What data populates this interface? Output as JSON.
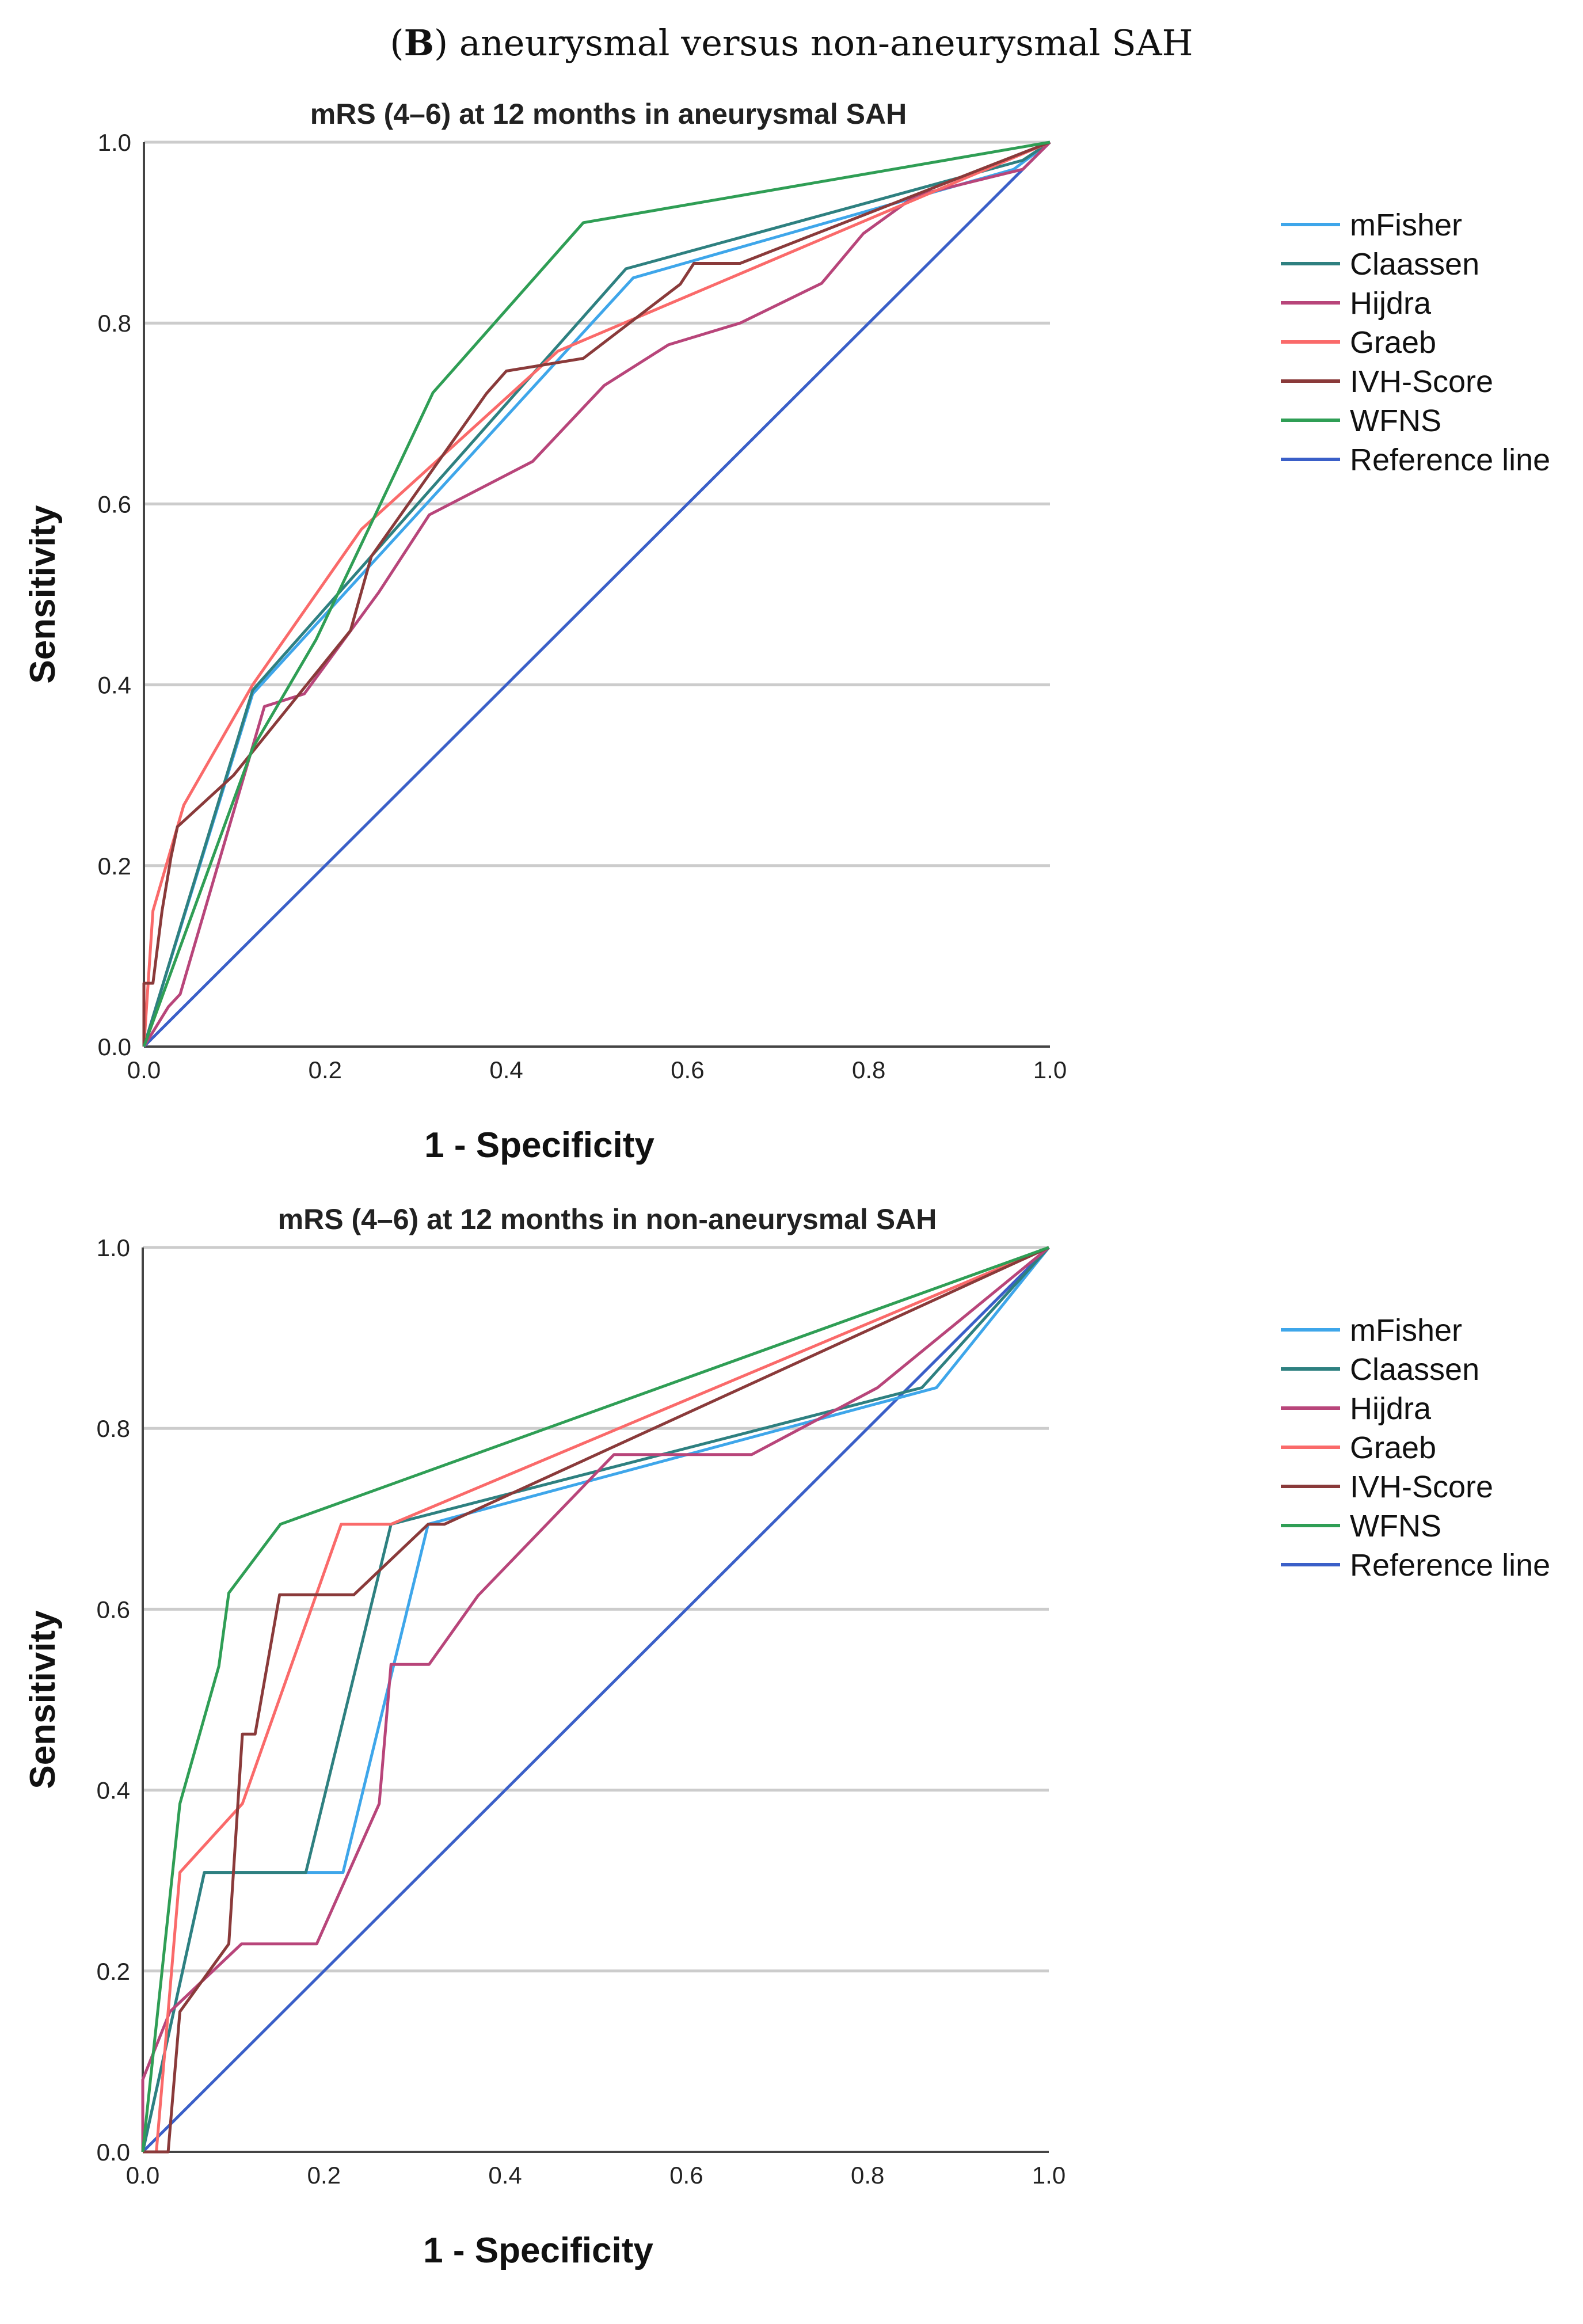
{
  "figure": {
    "panel_letter": "B",
    "title_rest": ") aneurysmal versus non-aneurysmal SAH",
    "title_open": "("
  },
  "colors": {
    "mFisher": "#3ea6ea",
    "Claassen": "#2e8080",
    "Hijdra": "#b8457a",
    "Graeb": "#fa6a6a",
    "IVH-Score": "#8a3a3a",
    "WFNS": "#2f9e55",
    "Reference line": "#3a5fc8",
    "grid": "#cccccc"
  },
  "chart_data": [
    {
      "type": "line",
      "title": "mRS (4–6) at 12 months in aneurysmal SAH",
      "xlabel": "1 - Specificity",
      "ylabel": "Sensitivity",
      "xlim": [
        0,
        1
      ],
      "ylim": [
        0,
        1
      ],
      "xticks": [
        "0.0",
        "0.2",
        "0.4",
        "0.6",
        "0.8",
        "1.0"
      ],
      "yticks": [
        "0.0",
        "0.2",
        "0.4",
        "0.6",
        "0.8",
        "1.0"
      ],
      "grid": "horizontal",
      "legend_position": "right",
      "series": [
        {
          "name": "mFisher",
          "points": [
            [
              0,
              0
            ],
            [
              0.12,
              0.39
            ],
            [
              0.54,
              0.85
            ],
            [
              0.96,
              0.97
            ],
            [
              1,
              1
            ]
          ]
        },
        {
          "name": "Claassen",
          "points": [
            [
              0,
              0
            ],
            [
              0.12,
              0.394
            ],
            [
              0.532,
              0.86
            ],
            [
              0.97,
              0.98
            ],
            [
              1,
              1
            ]
          ]
        },
        {
          "name": "Hijdra",
          "points": [
            [
              0,
              0
            ],
            [
              0.027,
              0.044
            ],
            [
              0.04,
              0.058
            ],
            [
              0.133,
              0.376
            ],
            [
              0.177,
              0.39
            ],
            [
              0.259,
              0.502
            ],
            [
              0.315,
              0.588
            ],
            [
              0.429,
              0.647
            ],
            [
              0.508,
              0.731
            ],
            [
              0.579,
              0.776
            ],
            [
              0.658,
              0.8
            ],
            [
              0.748,
              0.844
            ],
            [
              0.794,
              0.899
            ],
            [
              0.852,
              0.941
            ],
            [
              0.97,
              0.97
            ],
            [
              1,
              1
            ]
          ]
        },
        {
          "name": "Graeb",
          "points": [
            [
              0,
              0
            ],
            [
              0.01,
              0.15
            ],
            [
              0.044,
              0.267
            ],
            [
              0.12,
              0.4
            ],
            [
              0.24,
              0.572
            ],
            [
              0.457,
              0.769
            ],
            [
              1,
              1
            ]
          ]
        },
        {
          "name": "IVH-Score",
          "points": [
            [
              0,
              0
            ],
            [
              0,
              0.07
            ],
            [
              0.01,
              0.07
            ],
            [
              0.02,
              0.15
            ],
            [
              0.03,
              0.21
            ],
            [
              0.037,
              0.243
            ],
            [
              0.099,
              0.3
            ],
            [
              0.228,
              0.46
            ],
            [
              0.251,
              0.542
            ],
            [
              0.378,
              0.722
            ],
            [
              0.4,
              0.747
            ],
            [
              0.485,
              0.761
            ],
            [
              0.592,
              0.843
            ],
            [
              0.607,
              0.866
            ],
            [
              0.658,
              0.866
            ],
            [
              1,
              1
            ]
          ]
        },
        {
          "name": "WFNS",
          "points": [
            [
              0,
              0
            ],
            [
              0.12,
              0.33
            ],
            [
              0.19,
              0.45
            ],
            [
              0.28,
              0.64
            ],
            [
              0.319,
              0.723
            ],
            [
              0.485,
              0.911
            ],
            [
              1,
              1
            ]
          ]
        },
        {
          "name": "Reference line",
          "points": [
            [
              0,
              0
            ],
            [
              1,
              1
            ]
          ]
        }
      ]
    },
    {
      "type": "line",
      "title": "mRS (4–6) at 12 months in non-aneurysmal SAH",
      "xlabel": "1 - Specificity",
      "ylabel": "Sensitivity",
      "xlim": [
        0,
        1
      ],
      "ylim": [
        0,
        1
      ],
      "xticks": [
        "0.0",
        "0.2",
        "0.4",
        "0.6",
        "0.8",
        "1.0"
      ],
      "yticks": [
        "0.0",
        "0.2",
        "0.4",
        "0.6",
        "0.8",
        "1.0"
      ],
      "grid": "horizontal",
      "legend_position": "right",
      "series": [
        {
          "name": "mFisher",
          "points": [
            [
              0,
              0
            ],
            [
              0.068,
              0.309
            ],
            [
              0.221,
              0.309
            ],
            [
              0.315,
              0.694
            ],
            [
              0.876,
              0.845
            ],
            [
              1,
              1
            ]
          ]
        },
        {
          "name": "Claassen",
          "points": [
            [
              0,
              0
            ],
            [
              0.068,
              0.309
            ],
            [
              0.18,
              0.309
            ],
            [
              0.274,
              0.694
            ],
            [
              0.86,
              0.845
            ],
            [
              1,
              1
            ]
          ]
        },
        {
          "name": "Hijdra",
          "points": [
            [
              0,
              0
            ],
            [
              0,
              0.08
            ],
            [
              0.03,
              0.155
            ],
            [
              0.109,
              0.23
            ],
            [
              0.192,
              0.23
            ],
            [
              0.261,
              0.385
            ],
            [
              0.274,
              0.539
            ],
            [
              0.316,
              0.539
            ],
            [
              0.37,
              0.615
            ],
            [
              0.52,
              0.771
            ],
            [
              0.672,
              0.771
            ],
            [
              0.811,
              0.845
            ],
            [
              1,
              1
            ]
          ]
        },
        {
          "name": "Graeb",
          "points": [
            [
              0,
              0
            ],
            [
              0.015,
              0
            ],
            [
              0.041,
              0.309
            ],
            [
              0.11,
              0.385
            ],
            [
              0.219,
              0.694
            ],
            [
              0.274,
              0.694
            ],
            [
              1,
              1
            ]
          ]
        },
        {
          "name": "IVH-Score",
          "points": [
            [
              0,
              0
            ],
            [
              0.028,
              0
            ],
            [
              0.041,
              0.155
            ],
            [
              0.095,
              0.23
            ],
            [
              0.11,
              0.462
            ],
            [
              0.124,
              0.462
            ],
            [
              0.151,
              0.616
            ],
            [
              0.233,
              0.616
            ],
            [
              0.315,
              0.694
            ],
            [
              0.333,
              0.694
            ],
            [
              1,
              1
            ]
          ]
        },
        {
          "name": "WFNS",
          "points": [
            [
              0,
              0
            ],
            [
              0.041,
              0.385
            ],
            [
              0.084,
              0.537
            ],
            [
              0.095,
              0.618
            ],
            [
              0.152,
              0.694
            ],
            [
              1,
              1
            ]
          ]
        },
        {
          "name": "Reference line",
          "points": [
            [
              0,
              0
            ],
            [
              1,
              1
            ]
          ]
        }
      ]
    }
  ]
}
